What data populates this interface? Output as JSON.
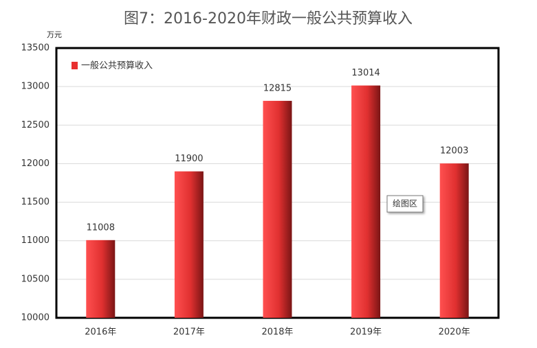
{
  "chart_data": {
    "type": "bar",
    "title": "图7：2016-2020年财政一般公共预算收入",
    "y_unit": "万元",
    "categories": [
      "2016年",
      "2017年",
      "2018年",
      "2019年",
      "2020年"
    ],
    "series": [
      {
        "name": "一般公共预算收入",
        "color": "#e83030",
        "values": [
          11008,
          11900,
          12815,
          13014,
          12003
        ]
      }
    ],
    "ylim": [
      10000,
      13500
    ],
    "yticks": [
      10000,
      10500,
      11000,
      11500,
      12000,
      12500,
      13000,
      13500
    ],
    "grid": true,
    "legend": "top-left",
    "tooltip": "绘图区"
  }
}
